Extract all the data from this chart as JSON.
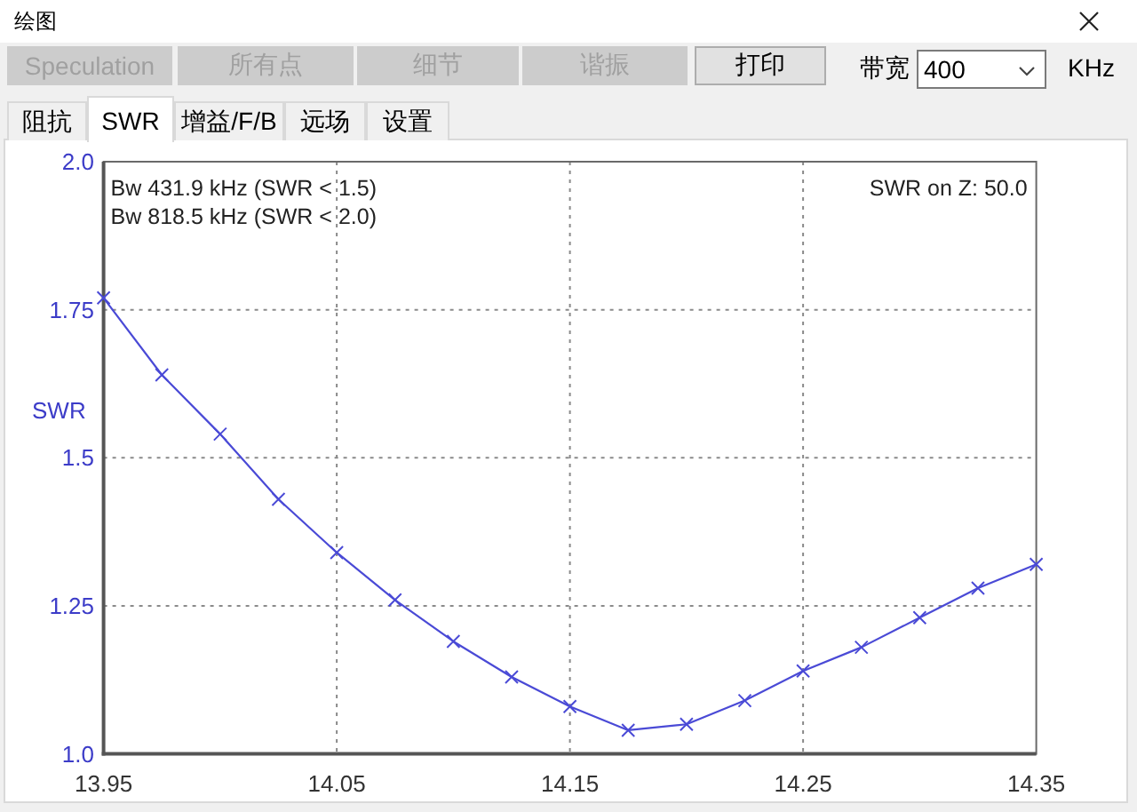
{
  "chart_data": {
    "type": "line",
    "title": "绘图",
    "ylabel": "SWR",
    "x": [
      13.95,
      13.975,
      14.0,
      14.025,
      14.05,
      14.075,
      14.1,
      14.125,
      14.15,
      14.175,
      14.2,
      14.225,
      14.25,
      14.275,
      14.3,
      14.325,
      14.35
    ],
    "series": [
      {
        "color": "#4a4ad6",
        "values": [
          1.77,
          1.64,
          1.54,
          1.43,
          1.34,
          1.26,
          1.19,
          1.13,
          1.08,
          1.04,
          1.05,
          1.09,
          1.14,
          1.18,
          1.23,
          1.28,
          1.32
        ]
      }
    ],
    "xlim": [
      13.95,
      14.35
    ],
    "ylim": [
      1.0,
      2.0
    ],
    "xticks": [
      13.95,
      14.05,
      14.15,
      14.25,
      14.35
    ],
    "yticks": [
      {
        "value": 1.0,
        "label": "1.0"
      },
      1.25,
      1.5,
      1.75,
      {
        "value": 2.0,
        "label": "2.0"
      }
    ],
    "grid": true,
    "marker": "cross",
    "line_style": "solid",
    "annotations": [
      "Bw 431.9 kHz (SWR < 1.5)",
      "Bw 818.5 kHz (SWR < 2.0)",
      "SWR on Z: 50.0",
      "Speculation",
      "所有点",
      "细节",
      "谐振",
      "打印",
      "带宽",
      "400",
      "KHz",
      "阻抗",
      "SWR",
      "增益/F/B",
      "远场",
      "设置"
    ]
  }
}
